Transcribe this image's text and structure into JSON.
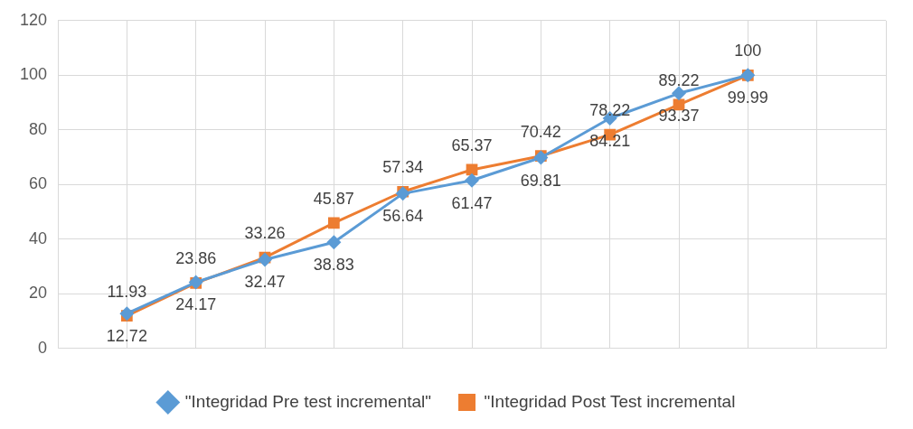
{
  "chart_data": {
    "type": "line",
    "categories": [
      null,
      null,
      null,
      null,
      null,
      null,
      null,
      null,
      null,
      null
    ],
    "ylim": [
      0,
      120
    ],
    "yticks": [
      0,
      20,
      40,
      60,
      80,
      100,
      120
    ],
    "grid": true,
    "legend": "bottom",
    "data_labels": true,
    "series": [
      {
        "name": "\"Integridad Pre test incremental\"",
        "color": "#5b9bd5",
        "marker": "diamond",
        "values": [
          12.72,
          24.17,
          32.47,
          38.83,
          56.64,
          61.47,
          69.81,
          84.21,
          93.37,
          99.99
        ]
      },
      {
        "name": "\"Integridad Post Test incremental",
        "color": "#ed7d31",
        "marker": "square",
        "values": [
          11.93,
          23.86,
          33.26,
          45.87,
          57.34,
          65.37,
          70.42,
          78.22,
          89.22,
          100
        ]
      }
    ]
  }
}
